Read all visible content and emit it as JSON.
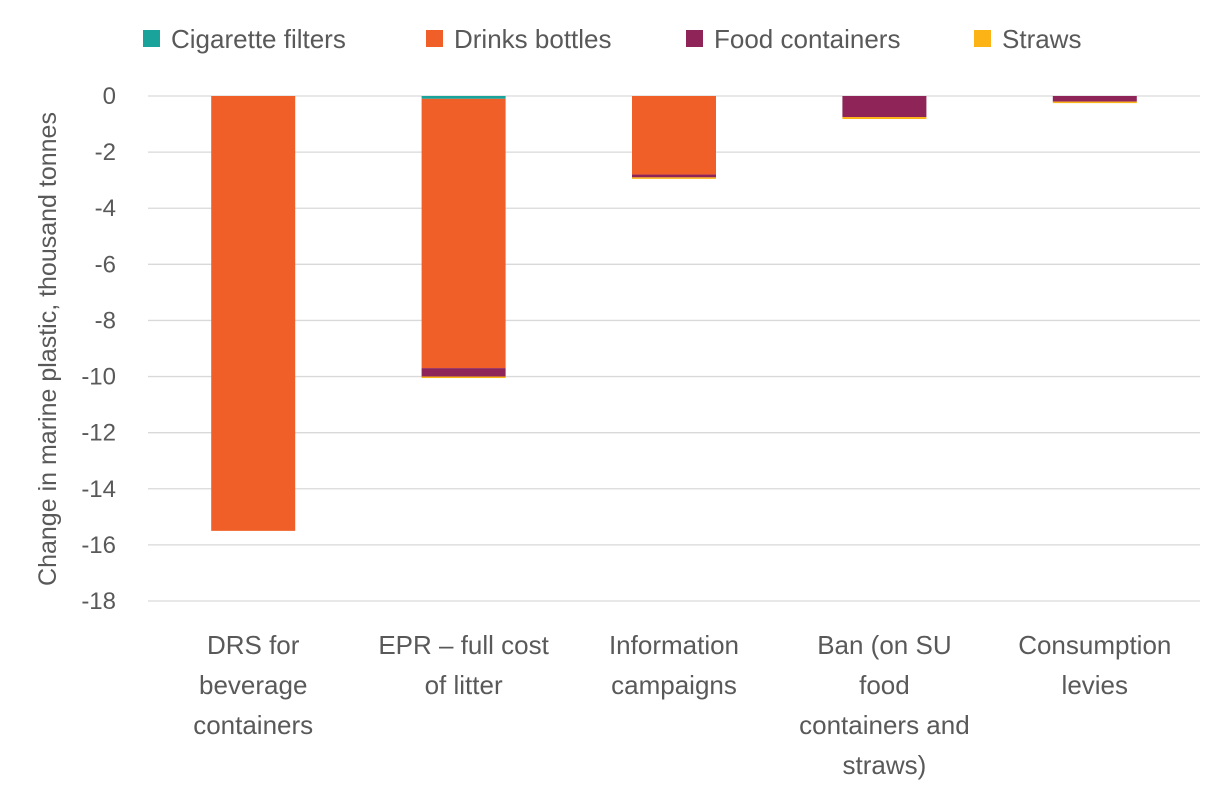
{
  "chart_data": {
    "type": "bar",
    "stacked": true,
    "title": "",
    "xlabel": "",
    "ylabel": "Change in marine plastic, thousand tonnes",
    "ylim": [
      -18,
      0
    ],
    "yticks": [
      0,
      -2,
      -4,
      -6,
      -8,
      -10,
      -12,
      -14,
      -16,
      -18
    ],
    "ytick_labels": [
      "0",
      "-2",
      "-4",
      "-6",
      "-8",
      "-10",
      "-12",
      "-14",
      "-16",
      "-18"
    ],
    "grid": true,
    "legend_position": "top",
    "categories": [
      [
        "DRS for",
        "beverage",
        "containers"
      ],
      [
        "EPR – full cost",
        "of litter"
      ],
      [
        "Information",
        "campaigns"
      ],
      [
        "Ban (on SU",
        "food",
        "containers and",
        "straws)"
      ],
      [
        "Consumption",
        "levies"
      ]
    ],
    "series": [
      {
        "name": "Cigarette filters",
        "color": "#1aa39a",
        "values": [
          0,
          -0.1,
          0,
          0,
          0
        ]
      },
      {
        "name": "Drinks bottles",
        "color": "#f05f28",
        "values": [
          -15.5,
          -9.6,
          -2.8,
          0,
          0
        ]
      },
      {
        "name": "Food containers",
        "color": "#8e2457",
        "values": [
          0,
          -0.3,
          -0.1,
          -0.75,
          -0.2
        ]
      },
      {
        "name": "Straws",
        "color": "#fcb316",
        "values": [
          0,
          -0.05,
          -0.02,
          -0.07,
          -0.03
        ]
      }
    ]
  }
}
